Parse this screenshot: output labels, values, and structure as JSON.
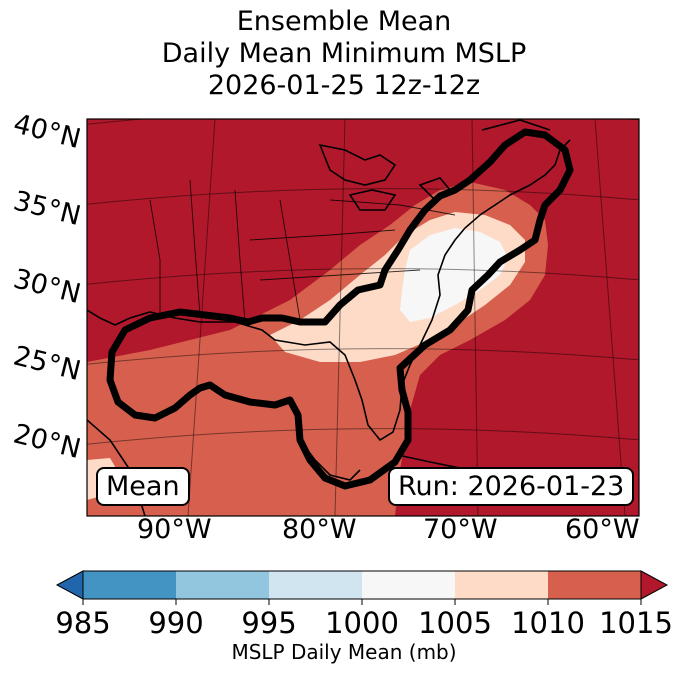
{
  "title": {
    "line1": "Ensemble Mean",
    "line2": "Daily Mean Minimum MSLP",
    "line3": "2026-01-25 12z-12z"
  },
  "lat_labels": [
    "40°N",
    "35°N",
    "30°N",
    "25°N",
    "20°N"
  ],
  "lon_labels": [
    "90°W",
    "80°W",
    "70°W",
    "60°W"
  ],
  "mean_label": "Mean",
  "run_label": "Run: 2026-01-23",
  "colorbar": {
    "label": "MSLP Daily Mean (mb)",
    "ticks": [
      "985",
      "990",
      "995",
      "1000",
      "1005",
      "1010",
      "1015"
    ],
    "bins": [
      {
        "range": "<985",
        "color": "#2166ac"
      },
      {
        "range": "985-990",
        "color": "#4393c3"
      },
      {
        "range": "990-995",
        "color": "#92c5de"
      },
      {
        "range": "995-1000",
        "color": "#d1e5f0"
      },
      {
        "range": "1000-1005",
        "color": "#f7f7f7"
      },
      {
        "range": "1005-1010",
        "color": "#fddbc7"
      },
      {
        "range": "1010-1015",
        "color": "#d6604d"
      },
      {
        "range": ">1015",
        "color": "#b2182b"
      }
    ]
  },
  "colors": {
    "high_pressure": "#b2182b",
    "moderate": "#d6604d",
    "low_moderate": "#fddbc7",
    "lowest_shown": "#f7f7f7",
    "contour": "#000000"
  },
  "map": {
    "region": "Eastern United States, Gulf of Mexico and western Atlantic",
    "grid": true
  }
}
